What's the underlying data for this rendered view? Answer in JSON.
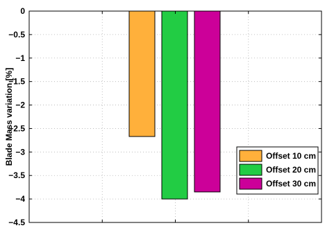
{
  "chart_data": {
    "type": "bar",
    "ylabel": "Blade Mass variation [%]",
    "xlabel": "",
    "title": "",
    "ylim": [
      -4.5,
      0
    ],
    "yticks": [
      0,
      -0.5,
      -1,
      -1.5,
      -2,
      -2.5,
      -3,
      -3.5,
      -4,
      -4.5
    ],
    "ytick_labels": [
      "0",
      "−0.5",
      "−1",
      "−1.5",
      "−2",
      "−2.5",
      "−3",
      "−3.5",
      "−4",
      "−4.5"
    ],
    "grid": true,
    "legend_position": "lower-right",
    "series": [
      {
        "name": "Offset 10 cm",
        "value": -2.67,
        "color": "#FFB03B"
      },
      {
        "name": "Offset 20 cm",
        "value": -4.0,
        "color": "#22CC44"
      },
      {
        "name": "Offset 30 cm",
        "value": -3.85,
        "color": "#CC0099"
      }
    ]
  }
}
